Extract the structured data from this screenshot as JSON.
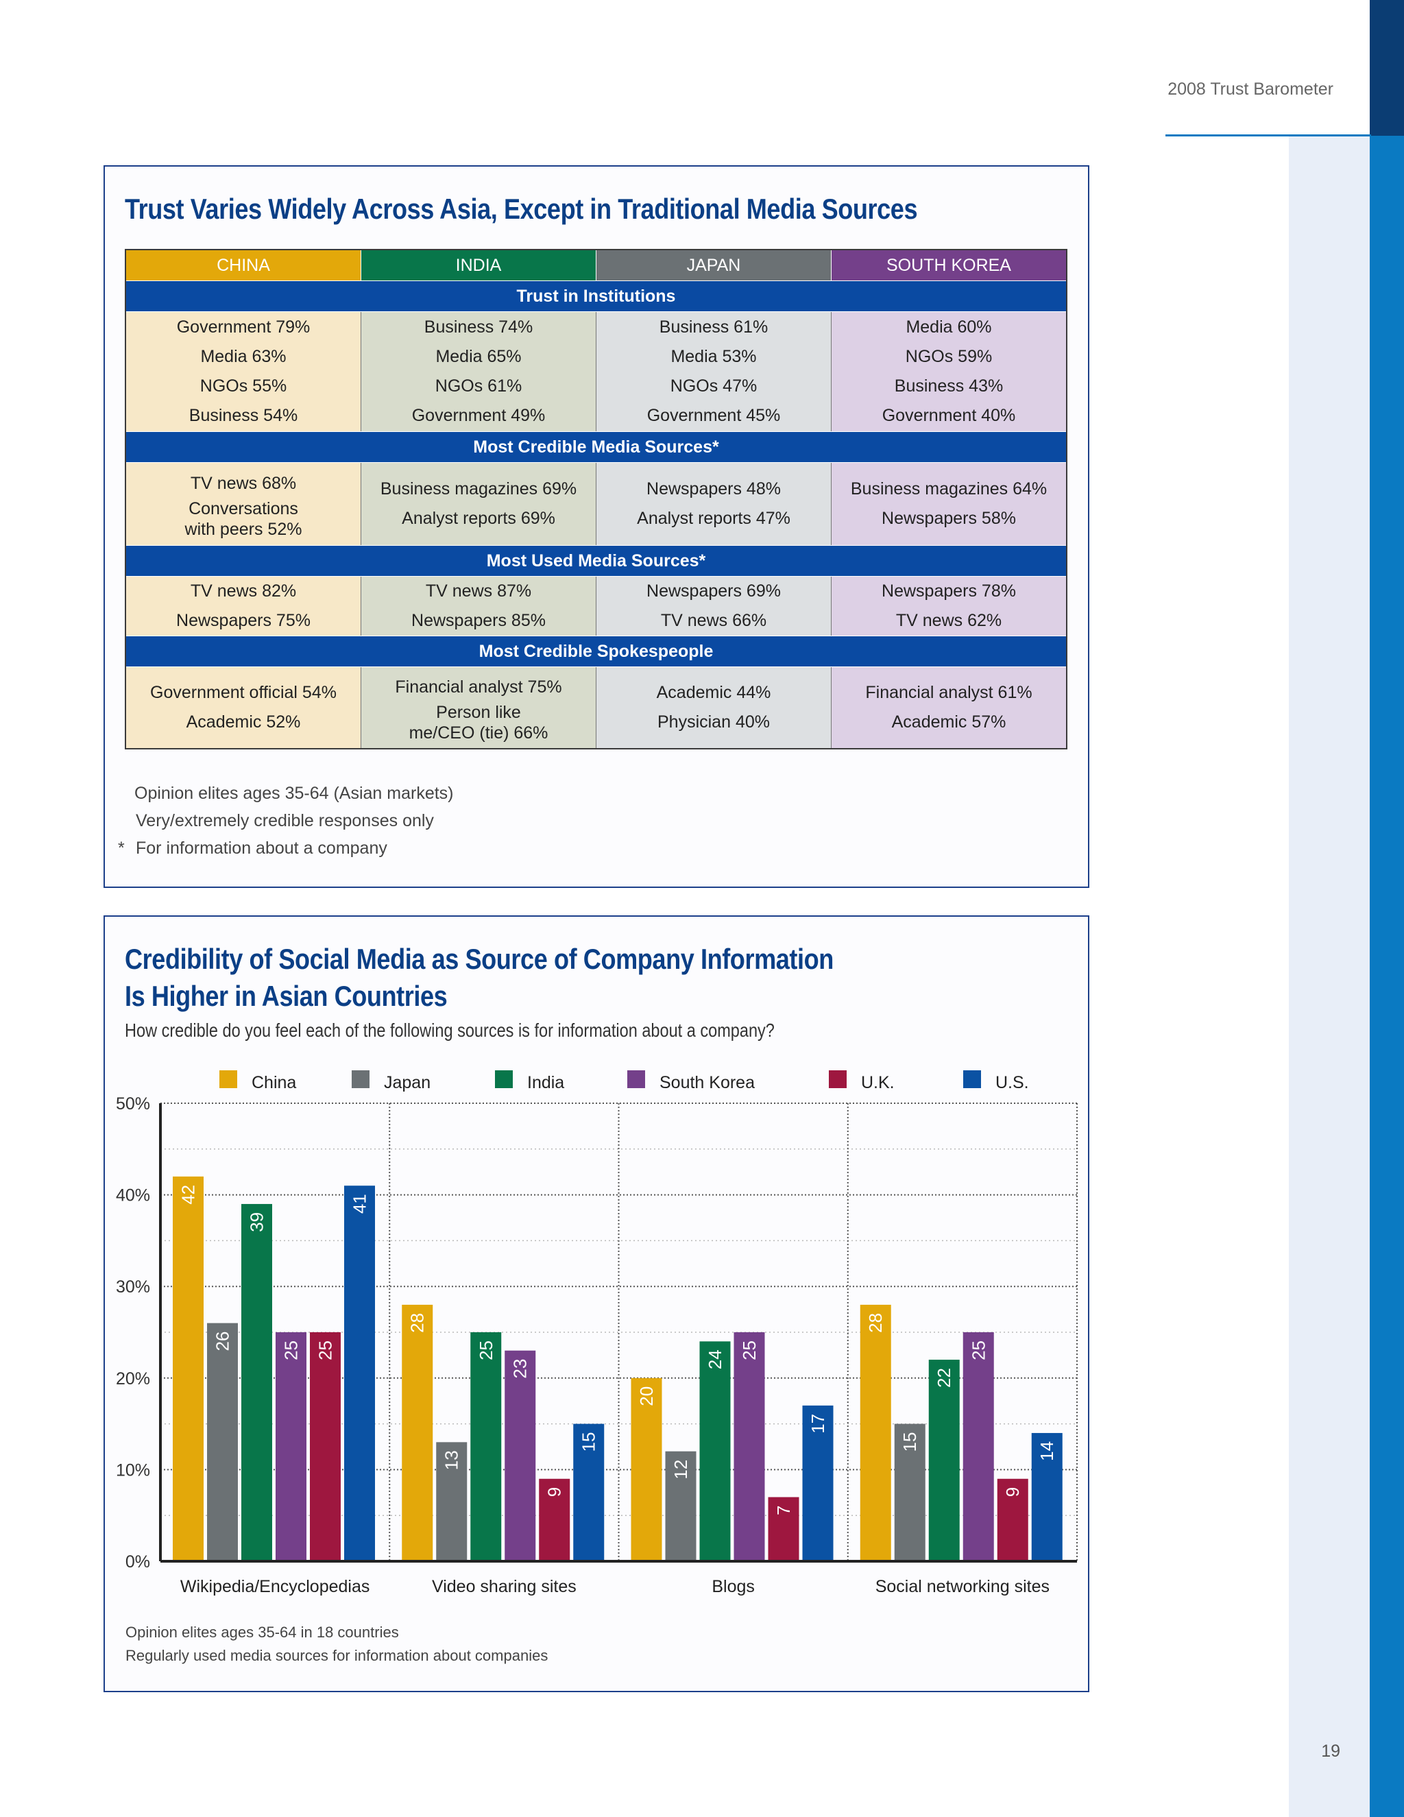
{
  "header": {
    "running_title": "2008 Trust Barometer",
    "page_number": "19"
  },
  "colors": {
    "china": "#e3a80a",
    "india": "#08764a",
    "japan": "#6b7174",
    "south_korea": "#74408a",
    "uk": "#9e173f",
    "us": "#0b52a3",
    "section_blue": "#0a4aa2",
    "title_blue": "#0b3f86"
  },
  "table": {
    "title": "Trust Varies Widely Across Asia, Except in Traditional Media Sources",
    "columns": [
      "CHINA",
      "INDIA",
      "JAPAN",
      "SOUTH KOREA"
    ],
    "sections": [
      {
        "name": "Trust in Institutions",
        "cells": [
          [
            "Government 79%",
            "Media 63%",
            "NGOs 55%",
            "Business 54%"
          ],
          [
            "Business 74%",
            "Media 65%",
            "NGOs 61%",
            "Government 49%"
          ],
          [
            "Business 61%",
            "Media 53%",
            "NGOs 47%",
            "Government 45%"
          ],
          [
            "Media 60%",
            "NGOs 59%",
            "Business 43%",
            "Government 40%"
          ]
        ]
      },
      {
        "name": "Most Credible Media Sources*",
        "cells": [
          [
            "TV news 68%",
            "Conversations",
            "with peers 52%"
          ],
          [
            "Business magazines 69%",
            "Analyst reports 69%"
          ],
          [
            "Newspapers 48%",
            "Analyst reports 47%"
          ],
          [
            "Business magazines 64%",
            "Newspapers 58%"
          ]
        ]
      },
      {
        "name": "Most Used Media Sources*",
        "cells": [
          [
            "TV news 82%",
            "Newspapers 75%"
          ],
          [
            "TV news 87%",
            "Newspapers 85%"
          ],
          [
            "Newspapers 69%",
            "TV news 66%"
          ],
          [
            "Newspapers 78%",
            "TV news 62%"
          ]
        ]
      },
      {
        "name": "Most Credible Spokespeople",
        "cells": [
          [
            "Government official 54%",
            "Academic 52%"
          ],
          [
            "Financial analyst 75%",
            "Person like",
            "me/CEO (tie) 66%"
          ],
          [
            "Academic 44%",
            "Physician 40%"
          ],
          [
            "Financial analyst 61%",
            "Academic 57%"
          ]
        ]
      }
    ],
    "notes": [
      "Opinion elites ages 35-64 (Asian markets)",
      "Very/extremely credible responses only",
      "For information about a company"
    ],
    "note_marker": "*"
  },
  "chart_section": {
    "title_line1": "Credibility of Social Media as Source of Company Information",
    "title_line2": "Is Higher in Asian Countries",
    "question": "How credible do you feel each of the following sources is for information about a company?",
    "notes": [
      "Opinion elites ages 35-64 in 18 countries",
      "Regularly used media sources for information about companies"
    ]
  },
  "chart_data": {
    "type": "bar",
    "categories": [
      "Wikipedia/Encyclopedias",
      "Video sharing sites",
      "Blogs",
      "Social networking sites"
    ],
    "series": [
      {
        "name": "China",
        "color": "#e3a80a",
        "values": [
          42,
          28,
          20,
          28
        ]
      },
      {
        "name": "Japan",
        "color": "#6b7174",
        "values": [
          26,
          13,
          12,
          15
        ]
      },
      {
        "name": "India",
        "color": "#08764a",
        "values": [
          39,
          25,
          24,
          22
        ]
      },
      {
        "name": "South Korea",
        "color": "#74408a",
        "values": [
          25,
          23,
          25,
          25
        ]
      },
      {
        "name": "U.K.",
        "color": "#9e173f",
        "values": [
          25,
          9,
          7,
          9
        ]
      },
      {
        "name": "U.S.",
        "color": "#0b52a3",
        "values": [
          41,
          15,
          17,
          14
        ]
      }
    ],
    "yticks": [
      "0%",
      "10%",
      "20%",
      "30%",
      "40%",
      "50%"
    ],
    "ylim": [
      0,
      50
    ],
    "legend_position": "top",
    "grid": true
  }
}
